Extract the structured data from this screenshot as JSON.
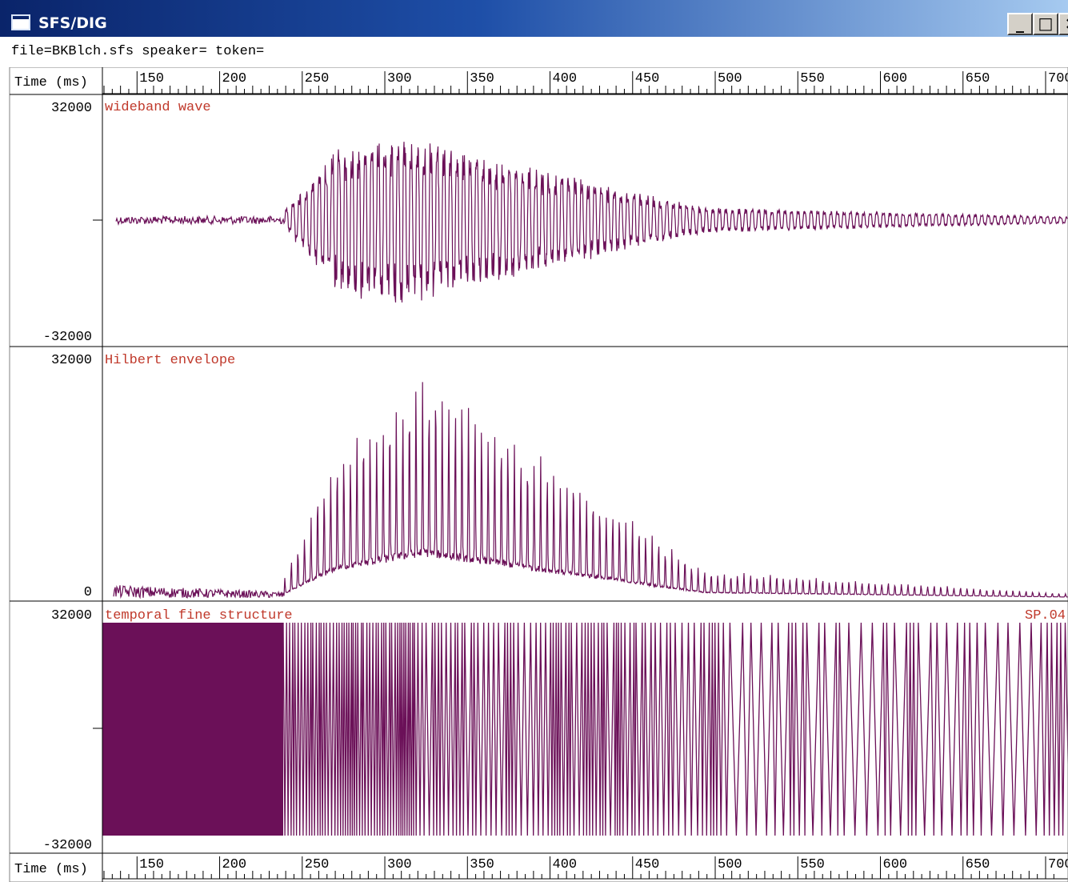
{
  "window": {
    "title": "SFS/DIG",
    "buttons": {
      "minimize": "_",
      "maximize": "□",
      "close": "×"
    }
  },
  "file_info": "file=BKBlch.sfs speaker= token=",
  "time_axis": {
    "label": "Time (ms)",
    "tick_labels": [
      "150",
      "200",
      "250",
      "300",
      "350",
      "400",
      "450",
      "500",
      "550",
      "600",
      "650",
      "700"
    ]
  },
  "panels": [
    {
      "title": "wideband wave",
      "y_top": "32000",
      "y_bottom": "-32000"
    },
    {
      "title": "Hilbert envelope",
      "y_top": "32000",
      "y_bottom": "0"
    },
    {
      "title": "temporal fine structure",
      "y_top": "32000",
      "y_bottom": "-32000",
      "tag": "SP.04"
    }
  ],
  "colors": {
    "trace": "#6b1058",
    "label": "#c0392b",
    "axis": "#000000"
  }
}
